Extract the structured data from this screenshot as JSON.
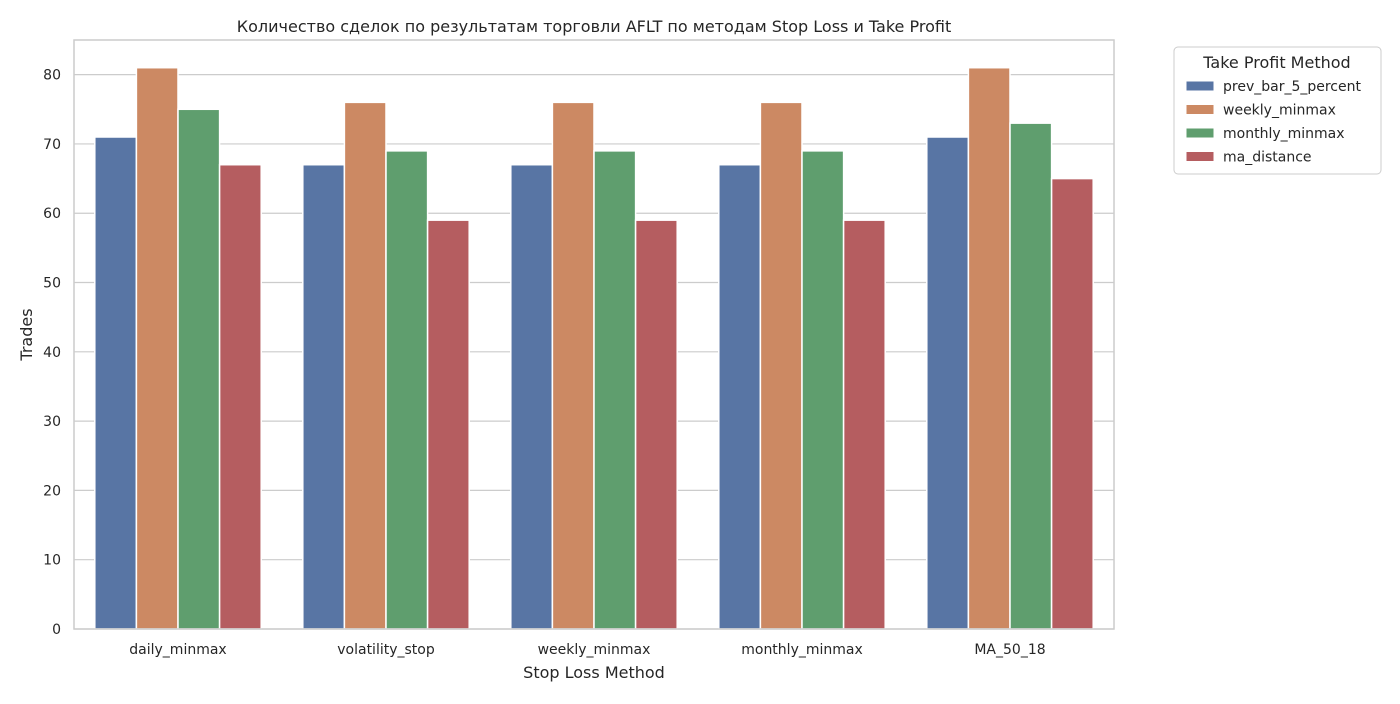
{
  "chart_data": {
    "type": "bar",
    "title": "Количество сделок по результатам торговли AFLT по методам Stop Loss и Take Profit",
    "xlabel": "Stop Loss Method",
    "ylabel": "Trades",
    "ylim": [
      0,
      85
    ],
    "yticks": [
      0,
      10,
      20,
      30,
      40,
      50,
      60,
      70,
      80
    ],
    "grid": true,
    "legend_title": "Take Profit Method",
    "legend_position": "outside-top-right",
    "categories": [
      "daily_minmax",
      "volatility_stop",
      "weekly_minmax",
      "monthly_minmax",
      "MA_50_18"
    ],
    "series": [
      {
        "name": "prev_bar_5_percent",
        "color": "#5875a4",
        "values": [
          71,
          67,
          67,
          67,
          71
        ]
      },
      {
        "name": "weekly_minmax",
        "color": "#cc8963",
        "values": [
          81,
          76,
          76,
          76,
          81
        ]
      },
      {
        "name": "monthly_minmax",
        "color": "#5f9e6e",
        "values": [
          75,
          69,
          69,
          69,
          73
        ]
      },
      {
        "name": "ma_distance",
        "color": "#b55d60",
        "values": [
          67,
          59,
          59,
          59,
          65
        ]
      }
    ]
  }
}
